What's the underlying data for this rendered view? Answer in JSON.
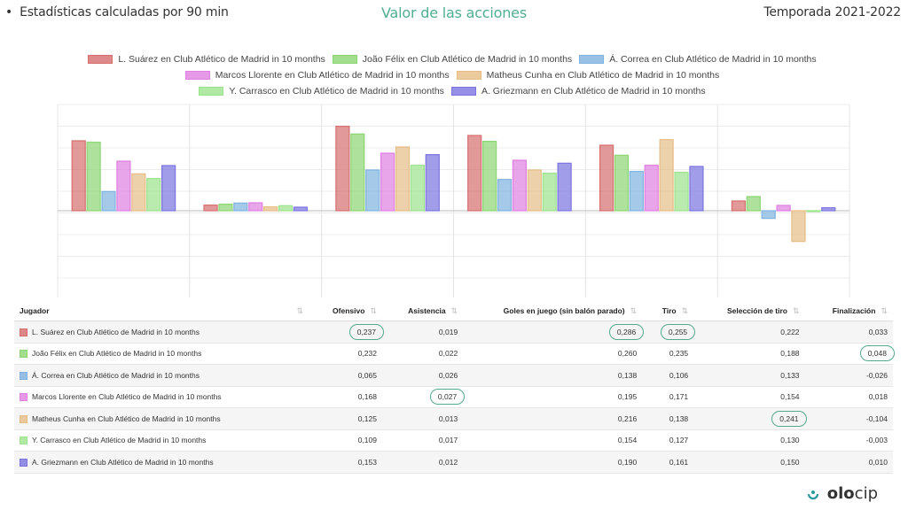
{
  "header": {
    "left": "Estadísticas calculadas por 90 min",
    "center": "Valor de las acciones",
    "right": "Temporada 2021-2022"
  },
  "chart_data": {
    "type": "bar",
    "categories": [
      "Ofensivo",
      "Asistencia",
      "Goles en juego (sin balón parado)",
      "Tiro",
      "Selección de tiro",
      "Finalización"
    ],
    "series": [
      {
        "name": "L. Suárez en Club Atlético de Madrid in 10 months",
        "color": "#d66d6d",
        "values": [
          0.237,
          0.019,
          0.286,
          0.255,
          0.222,
          0.033
        ]
      },
      {
        "name": "João Félix en Club Atlético de Madrid in 10 months",
        "color": "#8bd672",
        "values": [
          0.232,
          0.022,
          0.26,
          0.235,
          0.188,
          0.048
        ]
      },
      {
        "name": "Á. Correa en Club Atlético de Madrid in 10 months",
        "color": "#7fb2e0",
        "values": [
          0.065,
          0.026,
          0.138,
          0.106,
          0.133,
          -0.026
        ]
      },
      {
        "name": "Marcos Llorente en Club Atlético de Madrid in 10 months",
        "color": "#df7fe0",
        "values": [
          0.168,
          0.027,
          0.195,
          0.171,
          0.154,
          0.018
        ]
      },
      {
        "name": "Matheus Cunha en Club Atlético de Madrid in 10 months",
        "color": "#e6bd86",
        "values": [
          0.125,
          0.013,
          0.216,
          0.138,
          0.241,
          -0.104
        ]
      },
      {
        "name": "Y. Carrasco en Club Atlético de Madrid in 10 months",
        "color": "#9be38c",
        "values": [
          0.109,
          0.017,
          0.154,
          0.127,
          0.13,
          -0.003
        ]
      },
      {
        "name": "A. Griezmann en Club Atlético de Madrid in 10 months",
        "color": "#7b73e0",
        "values": [
          0.153,
          0.012,
          0.19,
          0.161,
          0.15,
          0.01
        ]
      }
    ],
    "legend_position": "top",
    "grid": true
  },
  "table": {
    "headers": [
      "Jugador",
      "Ofensivo",
      "Asistencia",
      "Goles en juego (sin balón parado)",
      "Tiro",
      "Selección de tiro",
      "Finalización"
    ],
    "rows": [
      [
        "L. Suárez en Club Atlético de Madrid in 10 months",
        "0,237",
        "0,019",
        "0,286",
        "0,255",
        "0,222",
        "0,033"
      ],
      [
        "João Félix en Club Atlético de Madrid in 10 months",
        "0,232",
        "0,022",
        "0,260",
        "0,235",
        "0,188",
        "0,048"
      ],
      [
        "Á. Correa en Club Atlético de Madrid in 10 months",
        "0,065",
        "0,026",
        "0,138",
        "0,106",
        "0,133",
        "-0,026"
      ],
      [
        "Marcos Llorente en Club Atlético de Madrid in 10 months",
        "0,168",
        "0,027",
        "0,195",
        "0,171",
        "0,154",
        "0,018"
      ],
      [
        "Matheus Cunha en Club Atlético de Madrid in 10 months",
        "0,125",
        "0,013",
        "0,216",
        "0,138",
        "0,241",
        "-0,104"
      ],
      [
        "Y. Carrasco en Club Atlético de Madrid in 10 months",
        "0,109",
        "0,017",
        "0,154",
        "0,127",
        "0,130",
        "-0,003"
      ],
      [
        "A. Griezmann en Club Atlético de Madrid in 10 months",
        "0,153",
        "0,012",
        "0,190",
        "0,161",
        "0,150",
        "0,010"
      ]
    ],
    "highlighted": [
      "0-1",
      "0-3",
      "0-4",
      "1-6",
      "3-2",
      "4-5"
    ]
  },
  "logo": {
    "text_bold": "olo",
    "text_light": "cip",
    "icon": "olocip-logo-icon"
  }
}
